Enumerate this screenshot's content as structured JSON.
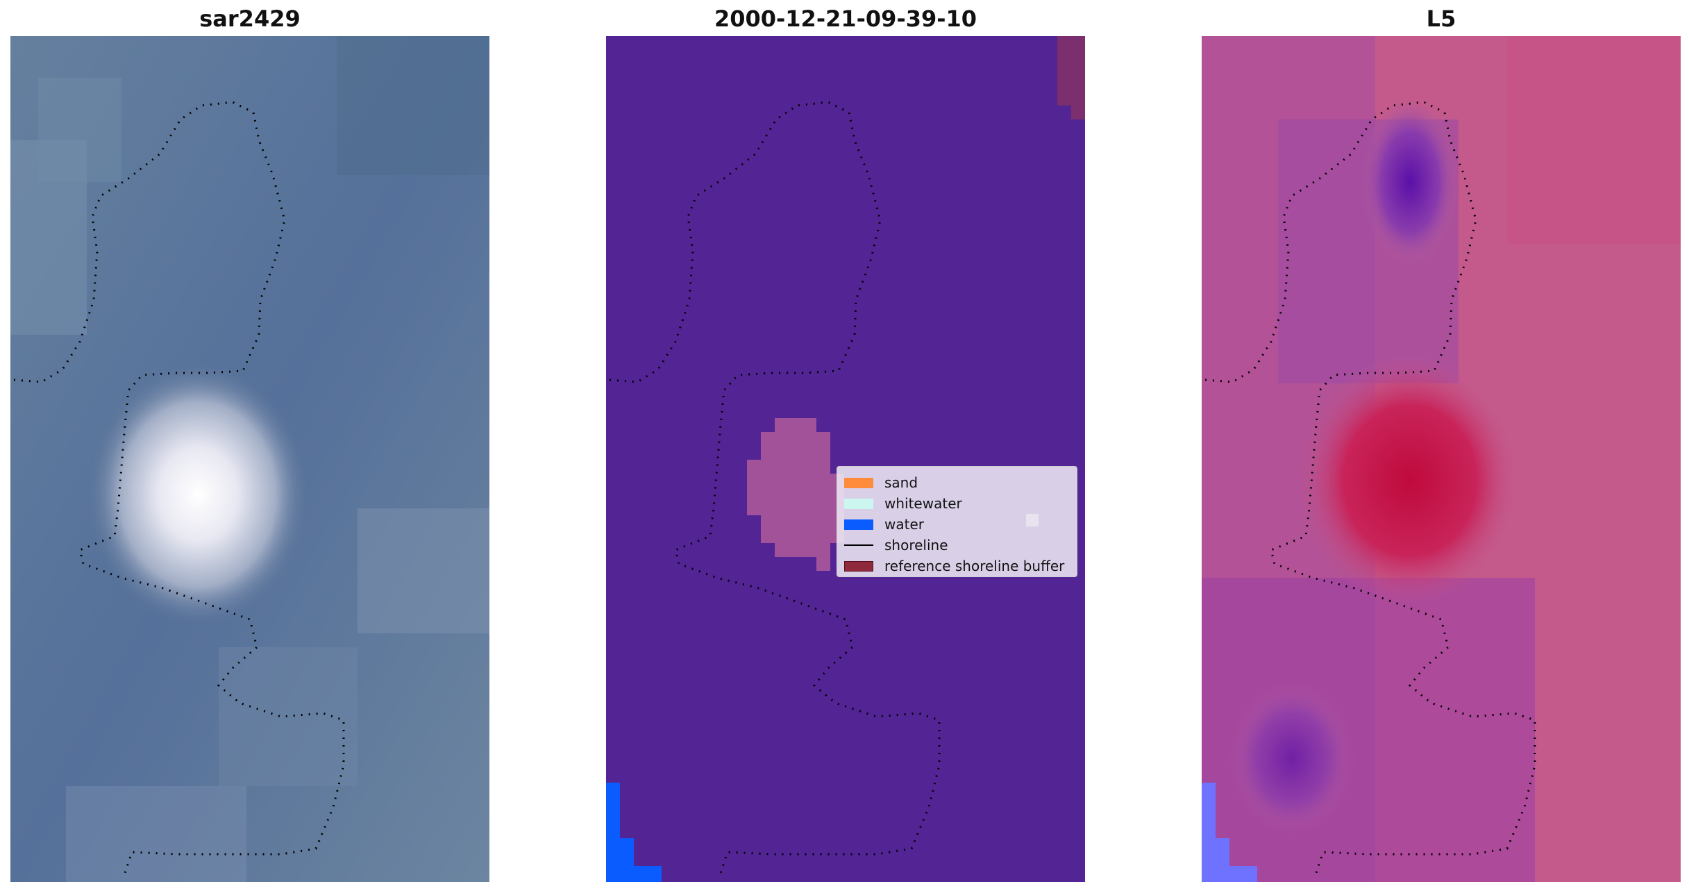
{
  "panels": [
    {
      "title": "sar2429"
    },
    {
      "title": "2000-12-21-09-39-10"
    },
    {
      "title": "L5"
    }
  ],
  "legend": {
    "items": [
      {
        "label": "sand",
        "color": "#ff8c3d",
        "kind": "patch"
      },
      {
        "label": "whitewater",
        "color": "#ccf7f0",
        "kind": "patch"
      },
      {
        "label": "water",
        "color": "#0a5cff",
        "kind": "patch"
      },
      {
        "label": "shoreline",
        "color": "#000000",
        "kind": "line"
      },
      {
        "label": "reference shoreline buffer",
        "color": "#8f2a3c",
        "kind": "patch"
      }
    ]
  },
  "colors": {
    "rgb_background": "#5a7397",
    "classification_background": "#522494",
    "mndwi_background": "#c45a8c",
    "bright_feature": "#f7f7fb",
    "water_fill": "#0a5cff",
    "buffer_highlight": "#b05a9a",
    "mndwi_dark": "#c00a3c"
  }
}
